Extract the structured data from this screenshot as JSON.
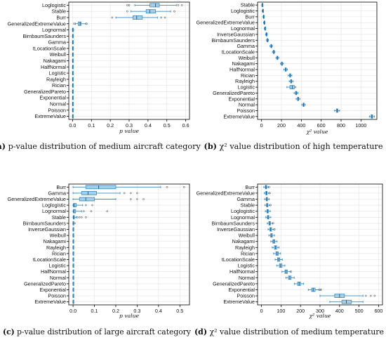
{
  "colors": {
    "box_fill": "#a6cee3",
    "box_edge": "#3b8dc4",
    "median": "#1f5f96"
  },
  "chart_data": [
    {
      "id": "a",
      "type": "box",
      "caption_label": "(a)",
      "caption_text": "p-value distribution of medium aircraft category",
      "xlabel": "p value",
      "xlim": [
        -0.02,
        0.62
      ],
      "xticks": [
        0.0,
        0.1,
        0.2,
        0.3,
        0.4,
        0.5,
        0.6
      ],
      "xtick_labels": [
        "0.0",
        "0.1",
        "0.2",
        "0.3",
        "0.4",
        "0.5",
        "0.6"
      ],
      "grid": true,
      "categories": [
        "Loglogistic",
        "Stable",
        "Burr",
        "GeneralizedExtremeValue",
        "Lognormal",
        "BirnbaumSaunders",
        "Gamma",
        "tLocationScale",
        "Weibull",
        "Nakagami",
        "HalfNormal",
        "Logistic",
        "Rayleigh",
        "Rician",
        "GeneralizedPareto",
        "Exponential",
        "Normal",
        "Poisson",
        "ExtremeValue"
      ],
      "boxes": [
        {
          "min": 0.33,
          "q1": 0.41,
          "median": 0.44,
          "q3": 0.46,
          "max": 0.55,
          "fliers": [
            0.29,
            0.3,
            0.56,
            0.58
          ]
        },
        {
          "min": 0.31,
          "q1": 0.39,
          "median": 0.41,
          "q3": 0.44,
          "max": 0.52,
          "fliers": [
            0.29,
            0.54
          ]
        },
        {
          "min": 0.23,
          "q1": 0.32,
          "median": 0.34,
          "q3": 0.37,
          "max": 0.45,
          "fliers": [
            0.21,
            0.47,
            0.49
          ]
        },
        {
          "min": 0.015,
          "q1": 0.03,
          "median": 0.04,
          "q3": 0.045,
          "max": 0.07,
          "fliers": [
            0.008,
            0.075
          ]
        },
        {
          "min": 0.0,
          "q1": 0.0,
          "median": 0.0,
          "q3": 0.003,
          "max": 0.006,
          "fliers": []
        },
        {
          "min": 0.0,
          "q1": 0.0,
          "median": 0.0,
          "q3": 0.002,
          "max": 0.005,
          "fliers": []
        },
        {
          "min": 0.0,
          "q1": 0.0,
          "median": 0.0,
          "q3": 0.002,
          "max": 0.005,
          "fliers": []
        },
        {
          "min": 0.0,
          "q1": 0.0,
          "median": 0.0,
          "q3": 0.002,
          "max": 0.004,
          "fliers": []
        },
        {
          "min": 0.0,
          "q1": 0.0,
          "median": 0.0,
          "q3": 0.001,
          "max": 0.003,
          "fliers": []
        },
        {
          "min": 0.0,
          "q1": 0.0,
          "median": 0.0,
          "q3": 0.001,
          "max": 0.003,
          "fliers": []
        },
        {
          "min": 0.0,
          "q1": 0.0,
          "median": 0.0,
          "q3": 0.001,
          "max": 0.003,
          "fliers": []
        },
        {
          "min": 0.0,
          "q1": 0.0,
          "median": 0.0,
          "q3": 0.001,
          "max": 0.003,
          "fliers": []
        },
        {
          "min": 0.0,
          "q1": 0.0,
          "median": 0.0,
          "q3": 0.001,
          "max": 0.003,
          "fliers": []
        },
        {
          "min": 0.0,
          "q1": 0.0,
          "median": 0.0,
          "q3": 0.001,
          "max": 0.003,
          "fliers": []
        },
        {
          "min": 0.0,
          "q1": 0.0,
          "median": 0.0,
          "q3": 0.001,
          "max": 0.003,
          "fliers": []
        },
        {
          "min": 0.0,
          "q1": 0.0,
          "median": 0.0,
          "q3": 0.001,
          "max": 0.003,
          "fliers": []
        },
        {
          "min": 0.0,
          "q1": 0.0,
          "median": 0.0,
          "q3": 0.001,
          "max": 0.003,
          "fliers": []
        },
        {
          "min": 0.0,
          "q1": 0.0,
          "median": 0.0,
          "q3": 0.001,
          "max": 0.003,
          "fliers": []
        },
        {
          "min": 0.0,
          "q1": 0.0,
          "median": 0.0,
          "q3": 0.001,
          "max": 0.003,
          "fliers": []
        }
      ]
    },
    {
      "id": "b",
      "type": "box",
      "caption_label": "(b)",
      "caption_text": "χ² value distribution of high temperature",
      "xlabel": "χ² value",
      "xlim": [
        -40,
        1160
      ],
      "xticks": [
        0,
        200,
        400,
        600,
        800,
        1000
      ],
      "xtick_labels": [
        "0",
        "200",
        "400",
        "600",
        "800",
        "1000"
      ],
      "grid": true,
      "categories": [
        "Stable",
        "Loglogistic",
        "Burr",
        "GeneralizedExtremeValue",
        "Lognormal",
        "InverseGaussian",
        "BirnbaumSaunders",
        "Gamma",
        "tLocationScale",
        "Weibull",
        "Nakagami",
        "HalfNormal",
        "Rician",
        "Rayleigh",
        "Logistic",
        "GeneralizedPareto",
        "Exponential",
        "Normal",
        "Poisson",
        "ExtremeValue"
      ],
      "boxes": [
        {
          "min": 2,
          "q1": 6,
          "median": 8,
          "q3": 10,
          "max": 14,
          "fliers": []
        },
        {
          "min": 6,
          "q1": 11,
          "median": 13,
          "q3": 15,
          "max": 20,
          "fliers": []
        },
        {
          "min": 14,
          "q1": 18,
          "median": 20,
          "q3": 23,
          "max": 28,
          "fliers": []
        },
        {
          "min": 20,
          "q1": 25,
          "median": 27,
          "q3": 30,
          "max": 35,
          "fliers": []
        },
        {
          "min": 28,
          "q1": 33,
          "median": 35,
          "q3": 38,
          "max": 43,
          "fliers": []
        },
        {
          "min": 40,
          "q1": 46,
          "median": 49,
          "q3": 52,
          "max": 58,
          "fliers": []
        },
        {
          "min": 50,
          "q1": 56,
          "median": 59,
          "q3": 63,
          "max": 69,
          "fliers": []
        },
        {
          "min": 85,
          "q1": 94,
          "median": 97,
          "q3": 101,
          "max": 109,
          "fliers": []
        },
        {
          "min": 110,
          "q1": 119,
          "median": 123,
          "q3": 127,
          "max": 135,
          "fliers": []
        },
        {
          "min": 145,
          "q1": 155,
          "median": 159,
          "q3": 164,
          "max": 173,
          "fliers": []
        },
        {
          "min": 190,
          "q1": 200,
          "median": 205,
          "q3": 210,
          "max": 220,
          "fliers": []
        },
        {
          "min": 225,
          "q1": 238,
          "median": 243,
          "q3": 249,
          "max": 260,
          "fliers": []
        },
        {
          "min": 268,
          "q1": 282,
          "median": 287,
          "q3": 293,
          "max": 305,
          "fliers": []
        },
        {
          "min": 278,
          "q1": 292,
          "median": 298,
          "q3": 304,
          "max": 316,
          "fliers": []
        },
        {
          "min": 255,
          "q1": 285,
          "median": 310,
          "q3": 330,
          "max": 345,
          "fliers": []
        },
        {
          "min": 328,
          "q1": 342,
          "median": 348,
          "q3": 354,
          "max": 366,
          "fliers": []
        },
        {
          "min": 348,
          "q1": 362,
          "median": 368,
          "q3": 374,
          "max": 386,
          "fliers": []
        },
        {
          "min": 405,
          "q1": 418,
          "median": 423,
          "q3": 428,
          "max": 440,
          "fliers": []
        },
        {
          "min": 735,
          "q1": 752,
          "median": 760,
          "q3": 768,
          "max": 785,
          "fliers": []
        },
        {
          "min": 1085,
          "q1": 1102,
          "median": 1110,
          "q3": 1118,
          "max": 1135,
          "fliers": []
        }
      ]
    },
    {
      "id": "c",
      "type": "box",
      "caption_label": "(c)",
      "caption_text": "p-value distribution of large aircraft category",
      "xlabel": "p value",
      "xlim": [
        -0.02,
        0.545
      ],
      "xticks": [
        0.0,
        0.1,
        0.2,
        0.3,
        0.4,
        0.5
      ],
      "xtick_labels": [
        "0.0",
        "0.1",
        "0.2",
        "0.3",
        "0.4",
        "0.5"
      ],
      "grid": true,
      "categories": [
        "Burr",
        "Gamma",
        "GeneralizedExtremeValue",
        "Loglogistic",
        "Lognormal",
        "Stable",
        "BirnbaumSaunders",
        "InverseGaussian",
        "Weibull",
        "Nakagami",
        "Rayleigh",
        "Rician",
        "tLocationScale",
        "Logistic",
        "HalfNormal",
        "Normal",
        "GeneralizedPareto",
        "Exponential",
        "Poisson",
        "ExtremeValue"
      ],
      "boxes": [
        {
          "min": 0.0,
          "q1": 0.06,
          "median": 0.12,
          "q3": 0.2,
          "max": 0.41,
          "fliers": [
            0.44,
            0.52
          ]
        },
        {
          "min": 0.0,
          "q1": 0.04,
          "median": 0.07,
          "q3": 0.11,
          "max": 0.22,
          "fliers": [
            0.24,
            0.27,
            0.3
          ]
        },
        {
          "min": 0.0,
          "q1": 0.03,
          "median": 0.06,
          "q3": 0.1,
          "max": 0.2,
          "fliers": [
            0.27,
            0.3,
            0.33
          ]
        },
        {
          "min": 0.0,
          "q1": 0.002,
          "median": 0.005,
          "q3": 0.015,
          "max": 0.045,
          "fliers": [
            0.06,
            0.09
          ]
        },
        {
          "min": 0.0,
          "q1": 0.002,
          "median": 0.004,
          "q3": 0.012,
          "max": 0.04,
          "fliers": [
            0.05,
            0.085,
            0.16
          ]
        },
        {
          "min": 0.0,
          "q1": 0.001,
          "median": 0.003,
          "q3": 0.006,
          "max": 0.014,
          "fliers": [
            0.02,
            0.03,
            0.04,
            0.06
          ]
        },
        {
          "min": 0.0,
          "q1": 0.0,
          "median": 0.0,
          "q3": 0.001,
          "max": 0.003,
          "fliers": [
            0.008
          ]
        },
        {
          "min": 0.0,
          "q1": 0.0,
          "median": 0.0,
          "q3": 0.001,
          "max": 0.002,
          "fliers": []
        },
        {
          "min": 0.0,
          "q1": 0.0,
          "median": 0.0,
          "q3": 0.001,
          "max": 0.002,
          "fliers": []
        },
        {
          "min": 0.0,
          "q1": 0.0,
          "median": 0.0,
          "q3": 0.001,
          "max": 0.002,
          "fliers": []
        },
        {
          "min": 0.0,
          "q1": 0.0,
          "median": 0.0,
          "q3": 0.001,
          "max": 0.002,
          "fliers": []
        },
        {
          "min": 0.0,
          "q1": 0.0,
          "median": 0.0,
          "q3": 0.001,
          "max": 0.002,
          "fliers": []
        },
        {
          "min": 0.0,
          "q1": 0.0,
          "median": 0.0,
          "q3": 0.001,
          "max": 0.002,
          "fliers": []
        },
        {
          "min": 0.0,
          "q1": 0.0,
          "median": 0.0,
          "q3": 0.001,
          "max": 0.002,
          "fliers": []
        },
        {
          "min": 0.0,
          "q1": 0.0,
          "median": 0.0,
          "q3": 0.001,
          "max": 0.002,
          "fliers": []
        },
        {
          "min": 0.0,
          "q1": 0.0,
          "median": 0.0,
          "q3": 0.001,
          "max": 0.002,
          "fliers": []
        },
        {
          "min": 0.0,
          "q1": 0.0,
          "median": 0.0,
          "q3": 0.001,
          "max": 0.002,
          "fliers": []
        },
        {
          "min": 0.0,
          "q1": 0.0,
          "median": 0.0,
          "q3": 0.001,
          "max": 0.002,
          "fliers": []
        },
        {
          "min": 0.0,
          "q1": 0.0,
          "median": 0.0,
          "q3": 0.001,
          "max": 0.002,
          "fliers": []
        },
        {
          "min": 0.0,
          "q1": 0.0,
          "median": 0.0,
          "q3": 0.001,
          "max": 0.002,
          "fliers": []
        }
      ]
    },
    {
      "id": "d",
      "type": "box",
      "caption_label": "(d)",
      "caption_text": "χ² value distribution of medium temperature",
      "xlabel": "χ² value",
      "xlim": [
        -20,
        620
      ],
      "xticks": [
        0,
        100,
        200,
        300,
        400,
        500,
        600
      ],
      "xtick_labels": [
        "0",
        "100",
        "200",
        "300",
        "400",
        "500",
        "600"
      ],
      "grid": true,
      "categories": [
        "Burr",
        "GeneralizedExtremeValue",
        "Gamma",
        "Stable",
        "Loglogistic",
        "Lognormal",
        "BirnbaumSaunders",
        "InverseGaussian",
        "Weibull",
        "Nakagami",
        "Rayleigh",
        "Rician",
        "tLocationScale",
        "Logistic",
        "HalfNormal",
        "Normal",
        "GeneralizedPareto",
        "Exponential",
        "Poisson",
        "ExtremeValue"
      ],
      "boxes": [
        {
          "min": 12,
          "q1": 20,
          "median": 23,
          "q3": 27,
          "max": 35,
          "fliers": [
            40
          ]
        },
        {
          "min": 14,
          "q1": 22,
          "median": 25,
          "q3": 29,
          "max": 38,
          "fliers": [
            43
          ]
        },
        {
          "min": 16,
          "q1": 24,
          "median": 27,
          "q3": 31,
          "max": 40,
          "fliers": []
        },
        {
          "min": 18,
          "q1": 26,
          "median": 29,
          "q3": 33,
          "max": 42,
          "fliers": [
            47
          ]
        },
        {
          "min": 20,
          "q1": 28,
          "median": 31,
          "q3": 35,
          "max": 45,
          "fliers": []
        },
        {
          "min": 22,
          "q1": 30,
          "median": 34,
          "q3": 38,
          "max": 48,
          "fliers": []
        },
        {
          "min": 30,
          "q1": 38,
          "median": 42,
          "q3": 46,
          "max": 57,
          "fliers": [
            60
          ]
        },
        {
          "min": 34,
          "q1": 43,
          "median": 47,
          "q3": 52,
          "max": 63,
          "fliers": [
            67
          ]
        },
        {
          "min": 38,
          "q1": 47,
          "median": 51,
          "q3": 56,
          "max": 67,
          "fliers": []
        },
        {
          "min": 48,
          "q1": 58,
          "median": 63,
          "q3": 68,
          "max": 80,
          "fliers": []
        },
        {
          "min": 55,
          "q1": 66,
          "median": 72,
          "q3": 78,
          "max": 90,
          "fliers": []
        },
        {
          "min": 62,
          "q1": 74,
          "median": 80,
          "q3": 86,
          "max": 98,
          "fliers": []
        },
        {
          "min": 70,
          "q1": 82,
          "median": 88,
          "q3": 94,
          "max": 107,
          "fliers": []
        },
        {
          "min": 78,
          "q1": 92,
          "median": 98,
          "q3": 105,
          "max": 120,
          "fliers": []
        },
        {
          "min": 105,
          "q1": 120,
          "median": 126,
          "q3": 133,
          "max": 148,
          "fliers": [
            152
          ]
        },
        {
          "min": 125,
          "q1": 138,
          "median": 145,
          "q3": 152,
          "max": 168,
          "fliers": []
        },
        {
          "min": 168,
          "q1": 185,
          "median": 193,
          "q3": 200,
          "max": 216,
          "fliers": []
        },
        {
          "min": 240,
          "q1": 257,
          "median": 265,
          "q3": 275,
          "max": 295,
          "fliers": [
            300,
            305
          ]
        },
        {
          "min": 300,
          "q1": 375,
          "median": 400,
          "q3": 425,
          "max": 520,
          "fliers": [
            535,
            560,
            580
          ]
        },
        {
          "min": 350,
          "q1": 412,
          "median": 435,
          "q3": 460,
          "max": 520,
          "fliers": []
        }
      ]
    }
  ]
}
